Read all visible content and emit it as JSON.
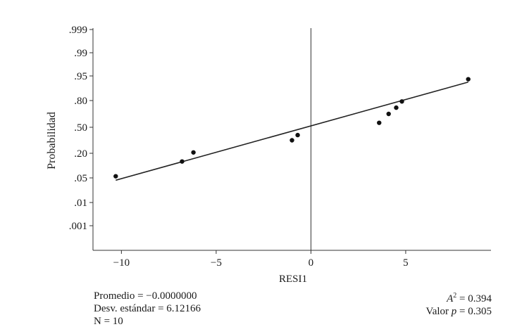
{
  "chart_data": {
    "type": "scatter",
    "title": "",
    "xlabel": "RESI1",
    "ylabel": "Probabilidad",
    "xlim": [
      -11.5,
      9.5
    ],
    "ylim": [
      0,
      1
    ],
    "x_ticks": [
      -10,
      -5,
      0,
      5
    ],
    "y_tick_labels": [
      ".001",
      ".01",
      ".05",
      ".20",
      ".50",
      ".80",
      ".95",
      ".99",
      ".999"
    ],
    "grid": false,
    "points": [
      {
        "x": -10.3,
        "y": 0.06
      },
      {
        "x": -6.8,
        "y": 0.15
      },
      {
        "x": -6.2,
        "y": 0.21
      },
      {
        "x": -1.0,
        "y": 0.35
      },
      {
        "x": -0.7,
        "y": 0.41
      },
      {
        "x": 3.6,
        "y": 0.55
      },
      {
        "x": 4.1,
        "y": 0.65
      },
      {
        "x": 4.5,
        "y": 0.72
      },
      {
        "x": 4.8,
        "y": 0.79
      },
      {
        "x": 8.3,
        "y": 0.93
      }
    ],
    "fit_line": {
      "x_start": -10.3,
      "x_end": 8.3
    }
  },
  "stats_left": [
    "Promedio = −0.0000000",
    "Desv. estándar = 6.12166",
    "N = 10"
  ],
  "stats_right": {
    "a2_label": "A",
    "a2_sup": "2",
    "a2_value": " = 0.394",
    "p_label": "Valor ",
    "p_sym": "p",
    "p_value": " = 0.305"
  }
}
